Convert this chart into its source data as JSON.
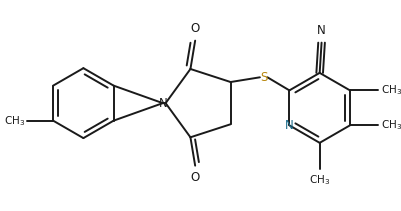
{
  "bg_color": "#ffffff",
  "bond_color": "#1a1a1a",
  "s_color": "#b8860b",
  "n_color": "#1a6b8a",
  "lw": 1.4,
  "figsize": [
    4.01,
    2.11
  ],
  "dpi": 100,
  "xlim": [
    0,
    401
  ],
  "ylim": [
    0,
    211
  ]
}
